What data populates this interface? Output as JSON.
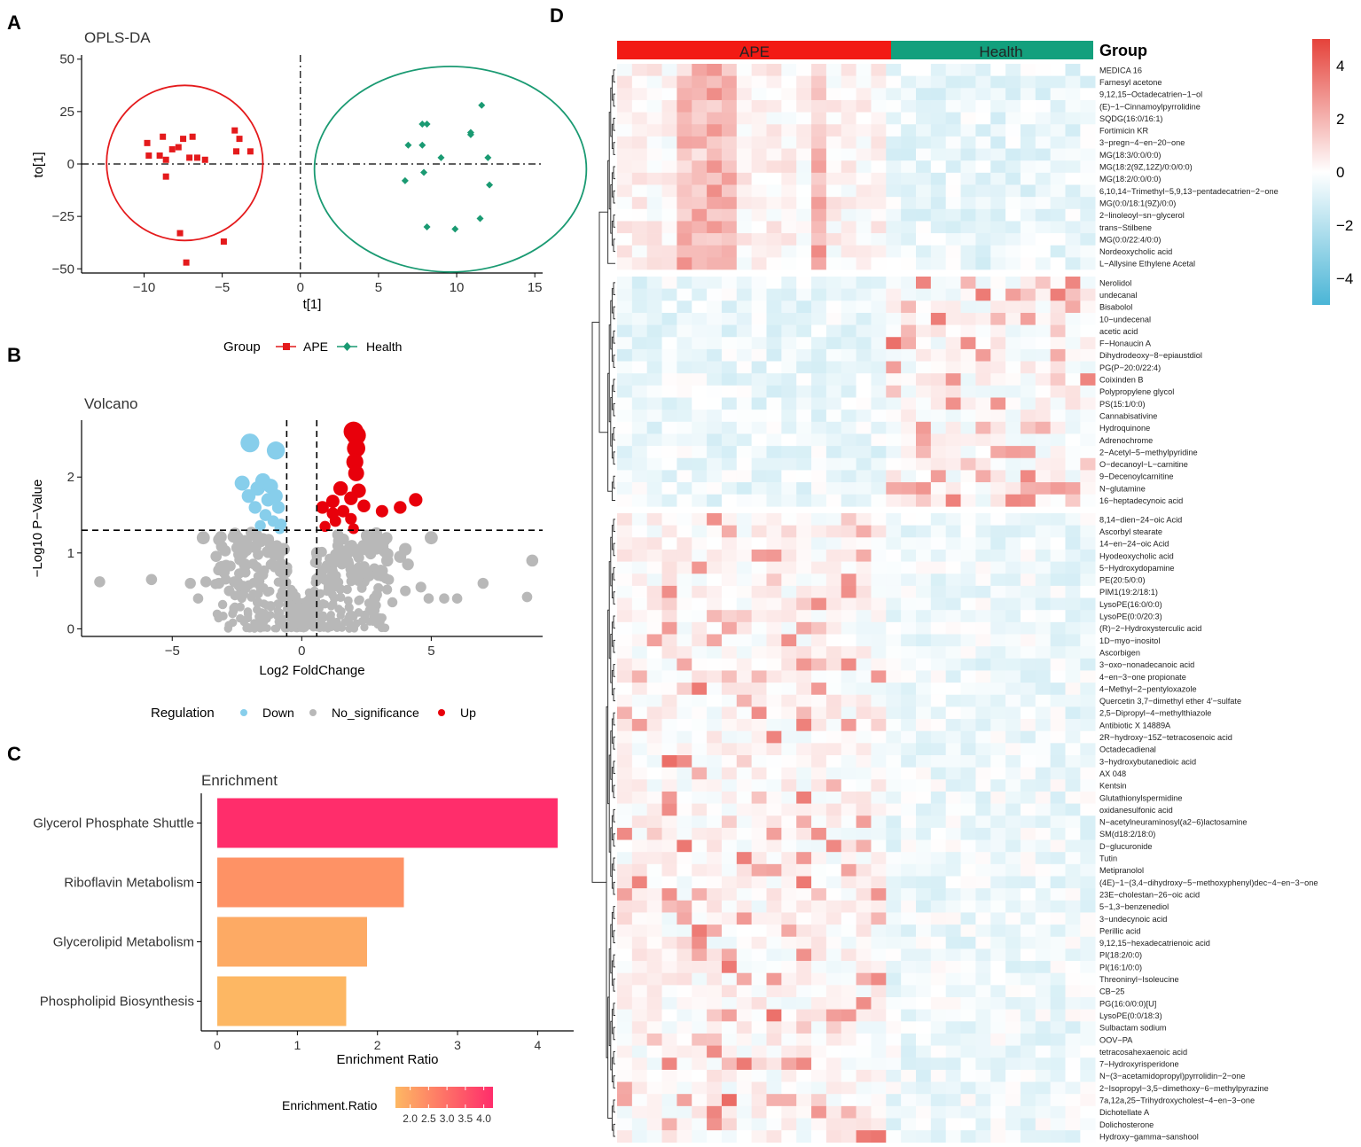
{
  "panel_labels": [
    "A",
    "B",
    "C",
    "D"
  ],
  "chart_data": [
    {
      "id": "opls",
      "type": "scatter",
      "title": "OPLS-DA",
      "xlabel": "t[1]",
      "ylabel": "to[1]",
      "xlim": [
        -14,
        15.5
      ],
      "ylim": [
        -52,
        52
      ],
      "xticks": [
        -10,
        -5,
        0,
        5,
        10,
        15
      ],
      "yticks": [
        -50,
        -25,
        0,
        25,
        50
      ],
      "legend": {
        "title": "Group",
        "entries": [
          "APE",
          "Health"
        ]
      },
      "colors": {
        "APE": "#e41a1c",
        "Health": "#1a9a72"
      },
      "series": [
        {
          "name": "APE",
          "marker": "square",
          "points": [
            [
              -9.8,
              10
            ],
            [
              -9.7,
              4
            ],
            [
              -8.8,
              13
            ],
            [
              -8.6,
              2
            ],
            [
              -8.2,
              7
            ],
            [
              -7.8,
              8
            ],
            [
              -7.5,
              12
            ],
            [
              -8.6,
              -6
            ],
            [
              -6.9,
              13
            ],
            [
              -6.6,
              3
            ],
            [
              -7.1,
              3
            ],
            [
              -6.1,
              2
            ],
            [
              -4.2,
              16
            ],
            [
              -3.9,
              12
            ],
            [
              -4.1,
              6
            ],
            [
              -3.2,
              6
            ],
            [
              -7.7,
              -33
            ],
            [
              -7.3,
              -47
            ],
            [
              -4.9,
              -37
            ],
            [
              -9.0,
              4
            ]
          ],
          "ellipse": {
            "cx": -7.4,
            "cy": 0.5,
            "rx": 5.0,
            "ry": 37
          }
        },
        {
          "name": "Health",
          "marker": "diamond",
          "points": [
            [
              11.6,
              28
            ],
            [
              7.8,
              19
            ],
            [
              8.1,
              19
            ],
            [
              10.9,
              15
            ],
            [
              10.9,
              14
            ],
            [
              7.8,
              9
            ],
            [
              6.9,
              9
            ],
            [
              12.0,
              3
            ],
            [
              9.0,
              3
            ],
            [
              6.7,
              -8
            ],
            [
              7.9,
              -4
            ],
            [
              12.1,
              -10
            ],
            [
              11.5,
              -26
            ],
            [
              8.1,
              -30
            ],
            [
              9.9,
              -31
            ]
          ],
          "ellipse": {
            "cx": 9.6,
            "cy": -2.5,
            "rx": 8.7,
            "ry": 49
          }
        }
      ]
    },
    {
      "id": "volcano",
      "type": "scatter",
      "title": "Volcano",
      "xlabel": "Log2 FoldChange",
      "ylabel": "−Log10 P−Value",
      "xlim": [
        -8.5,
        9.3
      ],
      "ylim": [
        -0.1,
        2.75
      ],
      "xticks": [
        -5,
        0,
        5
      ],
      "yticks": [
        0,
        1,
        2
      ],
      "vlines": [
        -0.58,
        0.58
      ],
      "hline": 1.3,
      "legend": {
        "title": "Regulation",
        "entries": [
          "Down",
          "No_significance",
          "Up"
        ]
      },
      "colors": {
        "Down": "#87ceeb",
        "No_significance": "#b8b8b8",
        "Up": "#e8000b"
      },
      "down": [
        [
          -1.0,
          2.35
        ],
        [
          -2.0,
          2.45
        ],
        [
          -2.3,
          1.92
        ],
        [
          -1.7,
          1.85
        ],
        [
          -1.5,
          1.95
        ],
        [
          -1.2,
          1.88
        ],
        [
          -1.0,
          1.75
        ],
        [
          -0.9,
          1.6
        ],
        [
          -1.8,
          1.6
        ],
        [
          -1.4,
          1.5
        ],
        [
          -1.1,
          1.42
        ],
        [
          -0.8,
          1.38
        ],
        [
          -2.05,
          1.75
        ],
        [
          -1.3,
          1.7
        ],
        [
          -0.85,
          1.32
        ],
        [
          -1.6,
          1.36
        ]
      ],
      "up": [
        [
          2.0,
          2.6
        ],
        [
          2.1,
          2.55
        ],
        [
          2.1,
          2.38
        ],
        [
          2.05,
          2.2
        ],
        [
          2.1,
          2.05
        ],
        [
          2.2,
          1.82
        ],
        [
          1.5,
          1.85
        ],
        [
          1.9,
          1.72
        ],
        [
          1.2,
          1.68
        ],
        [
          0.8,
          1.6
        ],
        [
          1.6,
          1.55
        ],
        [
          2.4,
          1.62
        ],
        [
          3.8,
          1.6
        ],
        [
          4.4,
          1.7
        ],
        [
          3.1,
          1.55
        ],
        [
          1.9,
          1.45
        ],
        [
          2.0,
          1.32
        ],
        [
          1.3,
          1.42
        ],
        [
          0.9,
          1.35
        ],
        [
          1.2,
          1.52
        ]
      ],
      "ns_highlight": [
        [
          -7.8,
          0.62
        ],
        [
          -2.5,
          1.2
        ],
        [
          -1.8,
          1.08
        ],
        [
          -2.2,
          0.85
        ],
        [
          -3.0,
          0.75
        ],
        [
          -3.2,
          0.6
        ],
        [
          -3.7,
          0.62
        ],
        [
          -2.6,
          0.62
        ],
        [
          -4.0,
          0.4
        ],
        [
          -2.8,
          0.5
        ],
        [
          4.0,
          1.05
        ],
        [
          4.1,
          0.85
        ],
        [
          3.8,
          0.95
        ],
        [
          3.3,
          0.9
        ],
        [
          4.6,
          0.55
        ],
        [
          4.9,
          0.4
        ],
        [
          4.0,
          0.5
        ],
        [
          5.5,
          0.4
        ],
        [
          7.0,
          0.6
        ],
        [
          8.7,
          0.42
        ],
        [
          8.9,
          0.9
        ],
        [
          -1.7,
          0.35
        ],
        [
          -1.2,
          0.3
        ],
        [
          1.3,
          0.9
        ],
        [
          0.6,
          1.0
        ],
        [
          -0.7,
          1.05
        ],
        [
          2.6,
          0.7
        ],
        [
          2.9,
          0.45
        ],
        [
          3.5,
          0.35
        ],
        [
          -3.8,
          1.2
        ],
        [
          6.0,
          0.4
        ],
        [
          5.0,
          1.2
        ],
        [
          -5.8,
          0.65
        ],
        [
          -4.3,
          0.6
        ]
      ],
      "ns_count": 520
    },
    {
      "id": "enrichment",
      "type": "bar",
      "orientation": "horizontal",
      "title": "Enrichment",
      "xlabel": "Enrichment Ratio",
      "categories": [
        "Glycerol Phosphate Shuttle",
        "Riboflavin Metabolism",
        "Glycerolipid Metabolism",
        "Phospholipid Biosynthesis"
      ],
      "values": [
        4.25,
        2.33,
        1.87,
        1.61
      ],
      "xlim": [
        -0.2,
        4.45
      ],
      "xticks": [
        0,
        1,
        2,
        3,
        4
      ],
      "colorbar": {
        "title": "Enrichment.Ratio",
        "ticks": [
          "2.0",
          "2.5",
          "3.0",
          "3.5",
          "4.0"
        ],
        "range": [
          1.6,
          4.25
        ],
        "low": "#fdb863",
        "high": "#ff2d6b"
      }
    },
    {
      "id": "heatmap",
      "type": "heatmap",
      "group_label": "Group",
      "groups": [
        {
          "name": "APE",
          "n": 18,
          "color": "#f21a14"
        },
        {
          "name": "Health",
          "n": 14,
          "color": "#13a07d"
        }
      ],
      "colorbar": {
        "ticks": [
          "4",
          "2",
          "0",
          "−2",
          "−4"
        ],
        "high": "#e5423a",
        "mid": "#ffffff",
        "low": "#4ab5d6"
      },
      "cluster_sizes": [
        17,
        19,
        52
      ],
      "rows": [
        "MEDICA 16",
        "Farnesyl acetone",
        "9,12,15−Octadecatrien−1−ol",
        "(E)−1−Cinnamoylpyrrolidine",
        "SQDG(16:0/16:1)",
        "Fortimicin KR",
        "3−pregn−4−en−20−one",
        "MG(18:3/0:0/0:0)",
        "MG(18:2(9Z,12Z)/0:0/0:0)",
        "MG(18:2/0:0/0:0)",
        "6,10,14−Trimethyl−5,9,13−pentadecatrien−2−one",
        "MG(0:0/18:1(9Z)/0:0)",
        "2−linoleoyl−sn−glycerol",
        "trans−Stilbene",
        "MG(0:0/22:4/0:0)",
        "Nordeoxycholic acid",
        "L−Allysine Ethylene Acetal",
        "Nerolidol",
        "undecanal",
        "Bisabolol",
        "10−undecenal",
        "acetic acid",
        "F−Honaucin A",
        "Dihydrodeoxy−8−epiaustdiol",
        "PG(P−20:0/22:4)",
        "Coixinden B",
        "Polypropylene glycol",
        "PS(15:1/0:0)",
        "Cannabisativine",
        "Hydroquinone",
        "Adrenochrome",
        "2−Acetyl−5−methylpyridine",
        "O−decanoyl−L−carnitine",
        "9−Decenoylcarnitine",
        "N−glutamine",
        "16−heptadecynoic acid",
        "8,14−dien−24−oic Acid",
        "Ascorbyl stearate",
        "14−en−24−oic Acid",
        "Hyodeoxycholic acid",
        "5−Hydroxydopamine",
        "PE(20:5/0:0)",
        "PIM1(19:2/18:1)",
        "LysoPE(16:0/0:0)",
        "LysoPE(0:0/20:3)",
        "(R)−2−Hydroxysterculic acid",
        "1D−myo−inositol",
        "Ascorbigen",
        "3−oxo−nonadecanoic acid",
        "4−en−3−one propionate",
        "4−Methyl−2−pentyloxazole",
        "Quercetin 3,7−dimethyl ether 4'−sulfate",
        "2,5−Dipropyl−4−methylthiazole",
        "Antibiotic X 14889A",
        "2R−hydroxy−15Z−tetracosenoic acid",
        "Octadecadienal",
        "3−hydroxybutanedioic acid",
        "AX 048",
        "Kentsin",
        "Glutathionylspermidine",
        "oxidanesulfonic acid",
        "N−acetylneuraminosyl(a2−6)lactosamine",
        "SM(d18:2/18:0)",
        "D−glucuronide",
        "Tutin",
        "Metipranolol",
        "(4E)−1−(3,4−dihydroxy−5−methoxyphenyl)dec−4−en−3−one",
        "23E−cholestan−26−oic acid",
        "5−1,3−benzenediol",
        "3−undecynoic acid",
        "Perillic acid",
        "9,12,15−hexadecatrienoic acid",
        "PI(18:2/0:0)",
        "PI(16:1/0:0)",
        "Threoninyl−Isoleucine",
        "CB−25",
        "PG(16:0/0:0)[U]",
        "LysoPE(0:0/18:3)",
        "Sulbactam sodium",
        "OOV−PA",
        "tetracosahexaenoic acid",
        "7−Hydroxyrisperidone",
        "N−(3−acetamidopropyl)pyrrolidin−2−one",
        "2−Isopropyl−3,5−dimethoxy−6−methylpyrazine",
        "7a,12a,25−Trihydroxycholest−4−en−3−one",
        "Dichotellate A",
        "Dolichosterone",
        "Hydroxy−gamma−sanshool"
      ]
    }
  ]
}
